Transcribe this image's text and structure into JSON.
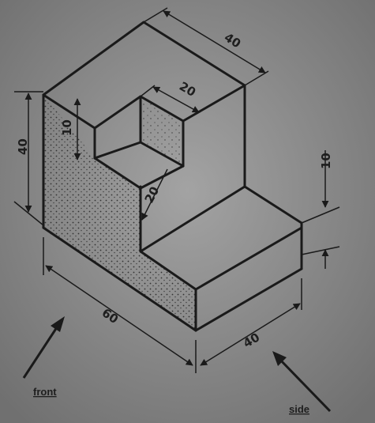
{
  "drawing": {
    "dimensions": {
      "top_depth": "40",
      "slot_width": "20",
      "slot_depth": "10",
      "step_height": "20",
      "left_height": "40",
      "right_height": "10",
      "front_length": "60",
      "side_depth": "40"
    },
    "views": {
      "front": "front",
      "side": "side"
    }
  },
  "colors": {
    "paper": "#8c8c8c",
    "ink": "#1a1a1a",
    "dots": "#3c3c3c"
  }
}
